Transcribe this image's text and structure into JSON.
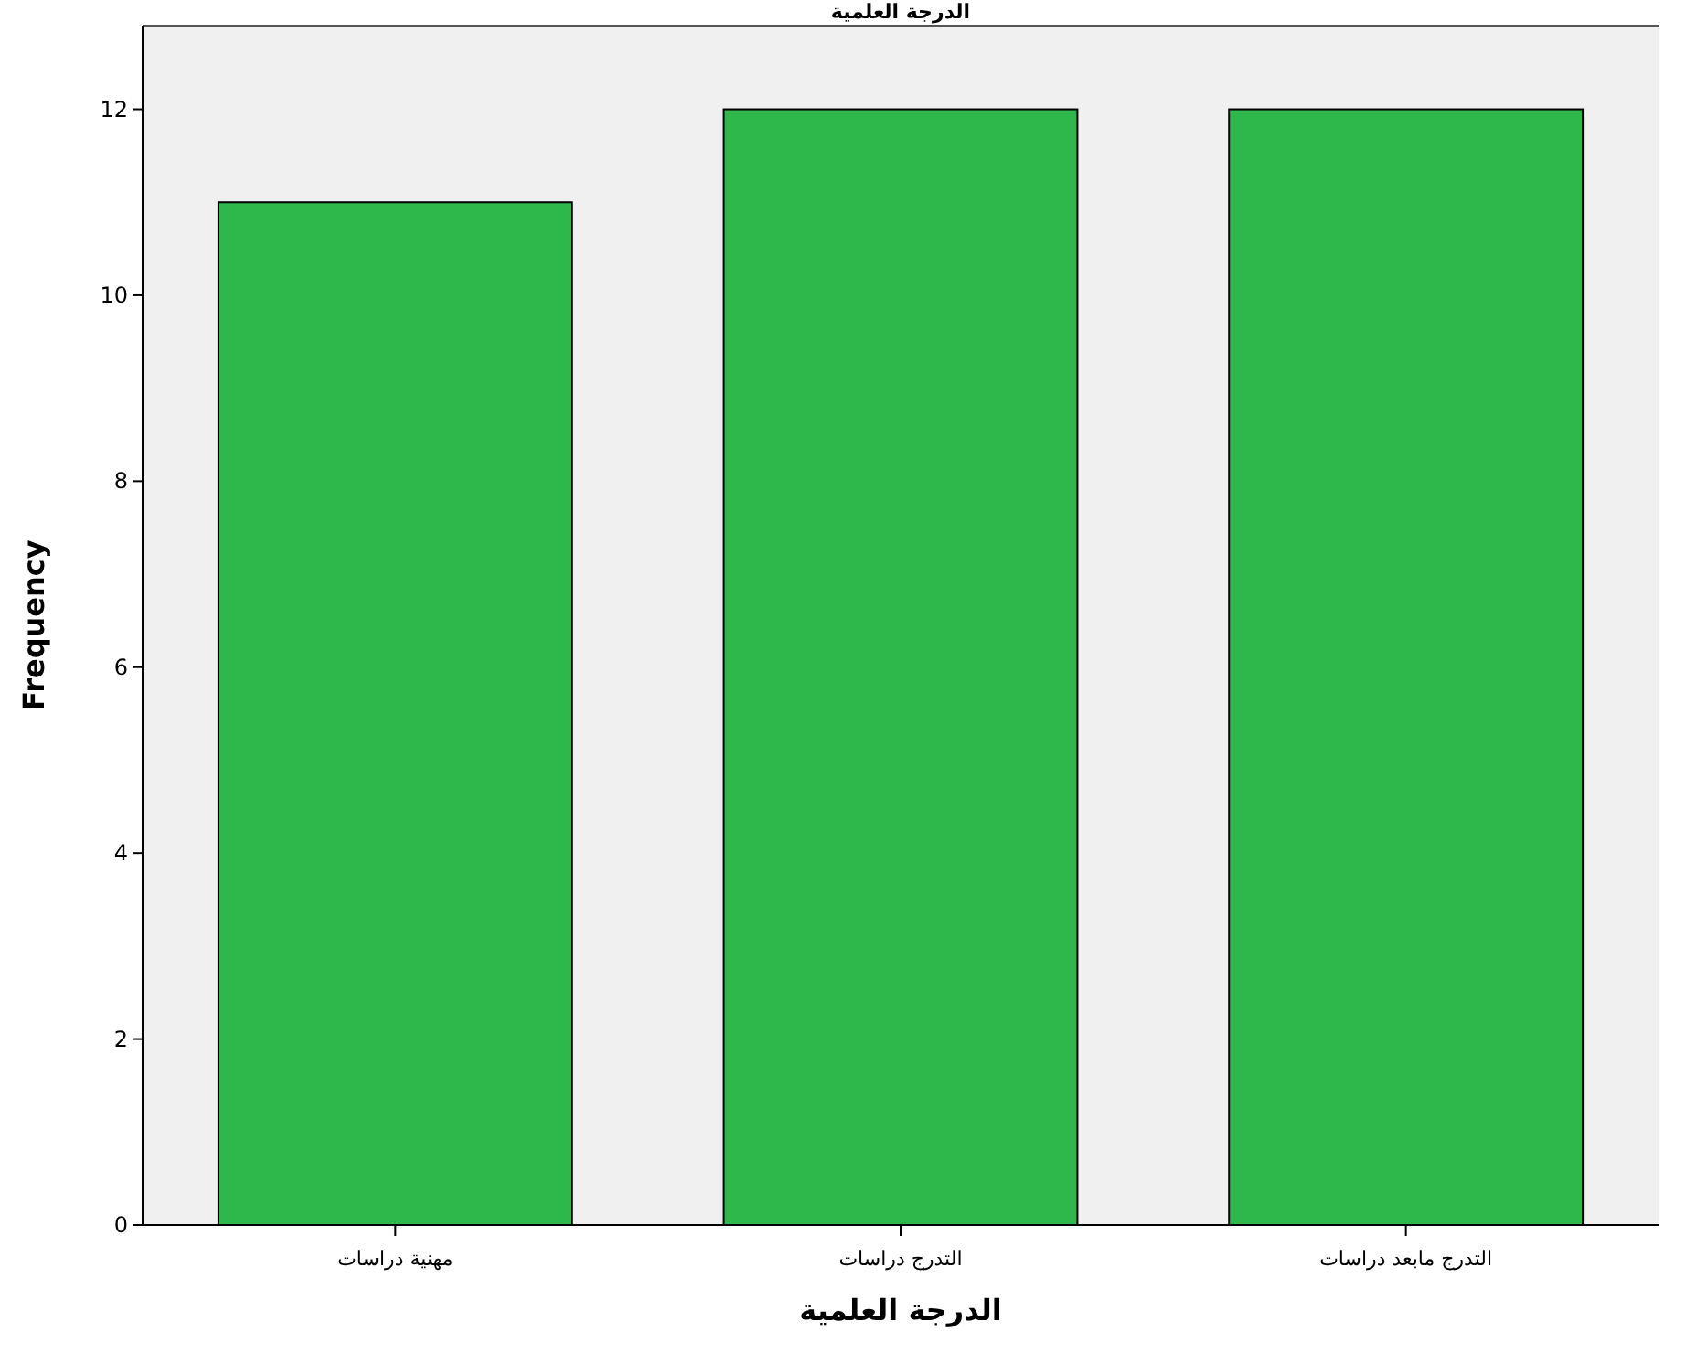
{
  "chart_data": {
    "type": "bar",
    "title": "الدرجة العلمية",
    "xlabel": "الدرجة العلمية",
    "ylabel": "Frequency",
    "categories": [
      "مهنية دراسات",
      "التدرج دراسات",
      "التدرج مابعد دراسات"
    ],
    "values": [
      11,
      12,
      12
    ],
    "color": "#2eb84b",
    "ylim": [
      0,
      12.9
    ],
    "yticks": [
      0,
      2,
      4,
      6,
      8,
      10,
      12
    ],
    "grid": false
  }
}
